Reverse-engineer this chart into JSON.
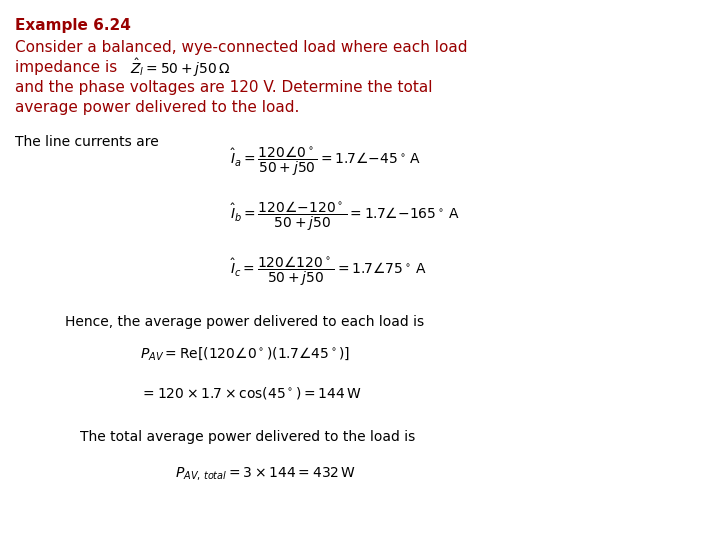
{
  "background_color": "#ffffff",
  "title_text": "Example 6.24",
  "title_color": "#990000",
  "title_fontsize": 11,
  "body_color": "#990000",
  "body_fontsize": 11,
  "math_color": "#000000",
  "math_fontsize": 10,
  "line1": "Consider a balanced, wye-connected load where each load",
  "line2": "impedance is",
  "line2_math": "$\\hat{Z}_{l} = 50 + j50\\,\\Omega$",
  "line3": "and the phase voltages are 120 V. Determine the total",
  "line4": "average power delivered to the load.",
  "label_line_currents": "The line currents are",
  "eq_ia": "$\\hat{I}_{a} = \\dfrac{120\\angle 0^\\circ}{50 + j50} = 1.7\\angle{-}45^\\circ\\,\\mathrm{A}$",
  "eq_ib": "$\\hat{I}_{b} = \\dfrac{120\\angle{-}120^\\circ}{50 + j50} = 1.7\\angle{-}165^\\circ\\,\\mathrm{A}$",
  "eq_ic": "$\\hat{I}_{c} = \\dfrac{120\\angle 120^\\circ}{50 + j50} = 1.7\\angle 75^\\circ\\,\\mathrm{A}$",
  "label_hence": "Hence, the average power delivered to each load is",
  "eq_pav1": "$P_{AV} = \\mathrm{Re}[(120\\angle 0^\\circ)(1.7\\angle 45^\\circ)]$",
  "eq_pav2": "$= 120 \\times 1.7 \\times \\cos(45^\\circ) = 144\\,\\mathrm{W}$",
  "label_total": "The total average power delivered to the load is",
  "eq_total": "$P_{AV,\\,total} = 3 \\times 144 = 432\\,\\mathrm{W}$",
  "fig_width": 7.2,
  "fig_height": 5.4,
  "dpi": 100
}
